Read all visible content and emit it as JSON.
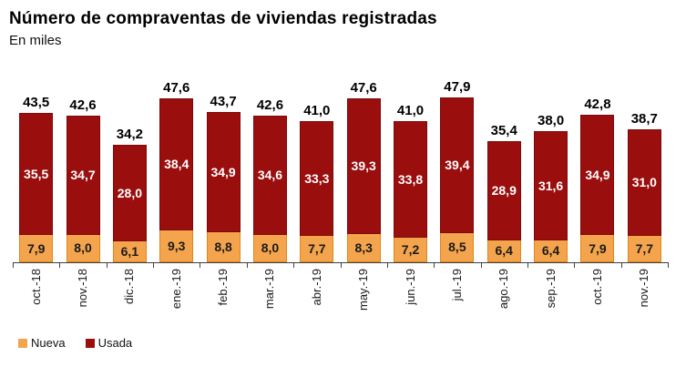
{
  "chart_data": {
    "type": "bar",
    "stacked": true,
    "title": "Número de compraventas de viviendas registradas",
    "subtitle": "En miles",
    "xlabel": "",
    "ylabel": "",
    "ylim": [
      0,
      50
    ],
    "grid": false,
    "legend_position": "bottom-left",
    "decimal_separator": ",",
    "categories": [
      "oct.-18",
      "nov.-18",
      "dic.-18",
      "ene.-19",
      "feb.-19",
      "mar.-19",
      "abr.-19",
      "may.-19",
      "jun.-19",
      "jul.-19",
      "ago.-19",
      "sep.-19",
      "oct.-19",
      "nov.-19"
    ],
    "series": [
      {
        "name": "Nueva",
        "color": "#F4A44C",
        "border_color": "#E0861C",
        "values": [
          7.9,
          8.0,
          6.1,
          9.3,
          8.8,
          8.0,
          7.7,
          8.3,
          7.2,
          8.5,
          6.4,
          6.4,
          7.9,
          7.7
        ]
      },
      {
        "name": "Usada",
        "color": "#9A0E0E",
        "border_color": "#7E0909",
        "values": [
          35.5,
          34.7,
          28.0,
          38.4,
          34.9,
          34.6,
          33.3,
          39.3,
          33.8,
          39.4,
          28.9,
          31.6,
          34.9,
          31.0
        ]
      }
    ],
    "totals": [
      43.5,
      42.6,
      34.2,
      47.6,
      43.7,
      42.6,
      41.0,
      47.6,
      41.0,
      47.9,
      35.4,
      38.0,
      42.8,
      38.7
    ]
  }
}
